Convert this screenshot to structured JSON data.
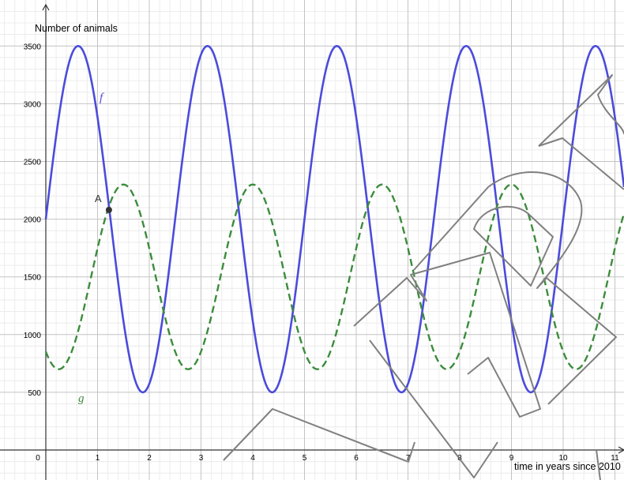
{
  "chart_data": {
    "type": "line",
    "xlabel": "time in years since 2010",
    "ylabel": "Number of animals",
    "xlim": [
      0,
      11.1
    ],
    "ylim": [
      -20,
      3790
    ],
    "x_ticks": [
      "0",
      "1",
      "2",
      "3",
      "4",
      "5",
      "6",
      "7",
      "8",
      "9",
      "10",
      "11"
    ],
    "y_ticks": [
      "500",
      "1000",
      "1500",
      "2000",
      "2500",
      "3000",
      "3500"
    ],
    "grid": true,
    "series": [
      {
        "name": "f",
        "style": "solid",
        "color": "#4b4bdc",
        "model": {
          "midline": 2000,
          "amplitude": 1500,
          "period": 2.5,
          "phase_x": 0
        },
        "x": [
          0,
          0.625,
          1.25,
          1.875,
          2.5,
          3.125,
          3.75,
          4.375,
          5,
          5.625,
          6.25,
          6.875,
          7.5,
          8.125,
          8.75,
          9.375,
          10,
          10.625,
          11.1
        ],
        "values": [
          2000,
          3500,
          2000,
          500,
          2000,
          3500,
          2000,
          500,
          2000,
          3500,
          2000,
          500,
          2000,
          3500,
          2000,
          500,
          2000,
          3500,
          2300
        ]
      },
      {
        "name": "g",
        "style": "dashed",
        "color": "#3c8c3c",
        "model": {
          "midline": 1500,
          "amplitude": 800,
          "period": 2.5,
          "phase_x": 0.875
        },
        "x": [
          0,
          0.25,
          0.875,
          1.5,
          2.125,
          2.75,
          3.375,
          4,
          4.625,
          5.25,
          5.875,
          6.5,
          7.125,
          7.75,
          8.375,
          9,
          9.625,
          10.25,
          10.875,
          11.1
        ],
        "values": [
          900,
          700,
          1500,
          2300,
          1500,
          700,
          1500,
          2300,
          1500,
          700,
          1500,
          2300,
          1500,
          700,
          1500,
          2300,
          1500,
          700,
          1500,
          2000
        ]
      }
    ],
    "points": [
      {
        "label": "A",
        "x": 1.22,
        "y": 2080
      }
    ]
  }
}
